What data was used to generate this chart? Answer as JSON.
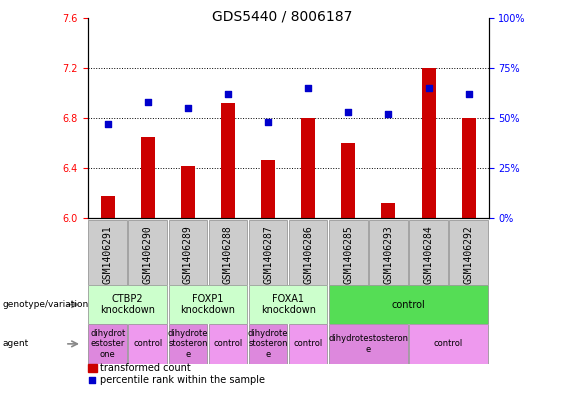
{
  "title": "GDS5440 / 8006187",
  "samples": [
    "GSM1406291",
    "GSM1406290",
    "GSM1406289",
    "GSM1406288",
    "GSM1406287",
    "GSM1406286",
    "GSM1406285",
    "GSM1406293",
    "GSM1406284",
    "GSM1406292"
  ],
  "transformed_count": [
    6.18,
    6.65,
    6.42,
    6.92,
    6.46,
    6.8,
    6.6,
    6.12,
    7.2,
    6.8
  ],
  "percentile_rank": [
    47,
    58,
    55,
    62,
    48,
    65,
    53,
    52,
    65,
    62
  ],
  "ylim_left": [
    6.0,
    7.6
  ],
  "ylim_right": [
    0,
    100
  ],
  "yticks_left": [
    6.0,
    6.4,
    6.8,
    7.2,
    7.6
  ],
  "yticks_right": [
    0,
    25,
    50,
    75,
    100
  ],
  "bar_color": "#cc0000",
  "dot_color": "#0000cc",
  "bg_color": "#ffffff",
  "genotype_groups": [
    {
      "label": "CTBP2\nknockdown",
      "start": 0,
      "end": 2,
      "color": "#ccffcc"
    },
    {
      "label": "FOXP1\nknockdown",
      "start": 2,
      "end": 4,
      "color": "#ccffcc"
    },
    {
      "label": "FOXA1\nknockdown",
      "start": 4,
      "end": 6,
      "color": "#ccffcc"
    },
    {
      "label": "control",
      "start": 6,
      "end": 10,
      "color": "#55dd55"
    }
  ],
  "agent_groups": [
    {
      "label": "dihydrot\nestoster\none",
      "start": 0,
      "end": 1,
      "color": "#dd88dd"
    },
    {
      "label": "control",
      "start": 1,
      "end": 2,
      "color": "#ee99ee"
    },
    {
      "label": "dihydrote\nstosteron\ne",
      "start": 2,
      "end": 3,
      "color": "#dd88dd"
    },
    {
      "label": "control",
      "start": 3,
      "end": 4,
      "color": "#ee99ee"
    },
    {
      "label": "dihydrote\nstosteron\ne",
      "start": 4,
      "end": 5,
      "color": "#dd88dd"
    },
    {
      "label": "control",
      "start": 5,
      "end": 6,
      "color": "#ee99ee"
    },
    {
      "label": "dihydrotestosteron\ne",
      "start": 6,
      "end": 8,
      "color": "#dd88dd"
    },
    {
      "label": "control",
      "start": 8,
      "end": 10,
      "color": "#ee99ee"
    }
  ],
  "title_fontsize": 10,
  "tick_fontsize": 7,
  "sample_label_color": "#cccccc",
  "geno_label_fontsize": 7,
  "agent_label_fontsize": 6
}
